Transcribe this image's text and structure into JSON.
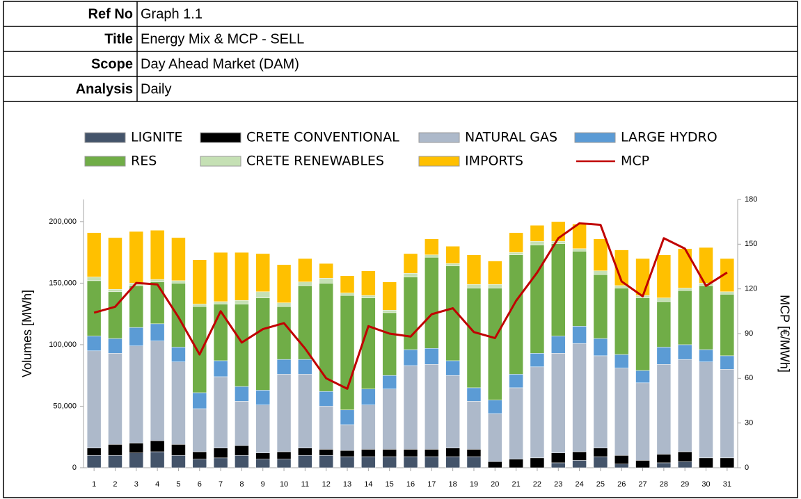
{
  "header": {
    "rows": [
      {
        "label": "Ref No",
        "value": "Graph 1.1"
      },
      {
        "label": "Title",
        "value": "Energy Mix & MCP - SELL"
      },
      {
        "label": "Scope",
        "value": "Day Ahead Market (DAM)"
      },
      {
        "label": "Analysis",
        "value": "Daily"
      }
    ]
  },
  "chart_data": {
    "type": "bar",
    "stacked": true,
    "y_label": "Volumes [MWh]",
    "y2_label": "MCP [€/MWh]",
    "categories": [
      "1",
      "2",
      "3",
      "4",
      "5",
      "6",
      "7",
      "8",
      "9",
      "10",
      "11",
      "12",
      "13",
      "14",
      "15",
      "16",
      "17",
      "18",
      "19",
      "20",
      "21",
      "22",
      "23",
      "24",
      "25",
      "26",
      "27",
      "28",
      "29",
      "30",
      "31"
    ],
    "ylim": [
      0,
      218000
    ],
    "yticks": [
      0,
      {
        "value": 50000,
        "label": "50,000"
      },
      {
        "value": 100000,
        "label": "100,000"
      },
      {
        "value": 150000,
        "label": "150,000"
      },
      {
        "value": 200000,
        "label": "200,000"
      }
    ],
    "y2lim": [
      0,
      180
    ],
    "y2ticks": [
      0,
      30,
      60,
      90,
      120,
      150,
      180
    ],
    "legend": "top",
    "grid": false,
    "series": [
      {
        "name": "LIGNITE",
        "color": "#44546a",
        "values": [
          10000,
          10000,
          12000,
          13000,
          10000,
          7000,
          8000,
          10000,
          7000,
          7000,
          10000,
          10000,
          9000,
          9000,
          9000,
          9000,
          9000,
          9000,
          9000,
          0,
          0,
          0,
          4000,
          6000,
          9000,
          3000,
          0,
          4000,
          5000,
          0,
          0
        ]
      },
      {
        "name": "CRETE CONVENTIONAL",
        "color": "#000000",
        "values": [
          6000,
          9000,
          8000,
          9000,
          9000,
          6000,
          8000,
          8000,
          5000,
          6000,
          6000,
          5000,
          5000,
          6000,
          6000,
          6000,
          6000,
          7000,
          6000,
          5000,
          7000,
          8000,
          8000,
          7000,
          7000,
          7000,
          6000,
          7000,
          8000,
          8000,
          8000
        ]
      },
      {
        "name": "NATURAL GAS",
        "color": "#adb9ca",
        "values": [
          79000,
          74000,
          79000,
          81000,
          67000,
          35000,
          58000,
          36000,
          39000,
          63000,
          60000,
          35000,
          21000,
          36000,
          49000,
          68000,
          69000,
          59000,
          39000,
          39000,
          58000,
          74000,
          81000,
          88000,
          75000,
          71000,
          63000,
          73000,
          75000,
          78000,
          72000
        ]
      },
      {
        "name": "LARGE HYDRO",
        "color": "#5b9bd5",
        "values": [
          12000,
          12000,
          15000,
          14000,
          12000,
          13000,
          13000,
          12000,
          12000,
          12000,
          12000,
          12000,
          12000,
          13000,
          11000,
          13000,
          13000,
          12000,
          11000,
          11000,
          11000,
          11000,
          14000,
          14000,
          14000,
          11000,
          10000,
          14000,
          12000,
          10000,
          11000
        ]
      },
      {
        "name": "RES",
        "color": "#70ad47",
        "values": [
          45000,
          38000,
          34000,
          34000,
          52000,
          70000,
          46000,
          67000,
          75000,
          43000,
          60000,
          88000,
          93000,
          74000,
          51000,
          59000,
          74000,
          77000,
          81000,
          91000,
          97000,
          88000,
          75000,
          61000,
          52000,
          54000,
          59000,
          37000,
          44000,
          52000,
          50000
        ]
      },
      {
        "name": "CRETE RENEWABLES",
        "color": "#c5e0b4",
        "values": [
          3000,
          2000,
          2000,
          2000,
          2000,
          2000,
          2000,
          3000,
          5000,
          3000,
          3000,
          4000,
          2000,
          2000,
          2000,
          3000,
          2000,
          2000,
          3000,
          3000,
          2000,
          3000,
          2000,
          2000,
          3000,
          2000,
          2000,
          3000,
          2000,
          2000,
          2000
        ]
      },
      {
        "name": "IMPORTS",
        "color": "#ffc000",
        "values": [
          36000,
          42000,
          42000,
          40000,
          35000,
          36000,
          40000,
          39000,
          31000,
          31000,
          19000,
          12000,
          14000,
          20000,
          23000,
          16000,
          13000,
          14000,
          24000,
          19000,
          16000,
          13000,
          16000,
          20000,
          26000,
          29000,
          30000,
          35000,
          32000,
          29000,
          27000
        ]
      },
      {
        "name": "MCP",
        "color": "#c00000",
        "type": "line",
        "axis": "y2",
        "values": [
          104,
          108,
          124,
          123,
          101,
          76,
          105,
          84,
          93,
          97,
          80,
          60,
          53,
          95,
          90,
          88,
          103,
          107,
          91,
          87,
          112,
          131,
          154,
          164,
          163,
          125,
          115,
          154,
          147,
          122,
          131
        ]
      }
    ]
  }
}
